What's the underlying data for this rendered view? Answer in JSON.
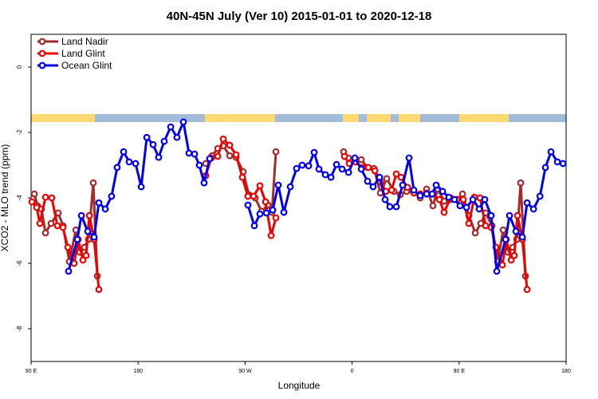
{
  "chart_data": {
    "type": "line",
    "title": "40N-45N July (Ver 10)   2015-01-01 to 2020-12-18",
    "x_label": "Longitude",
    "y_label": "XCO2 - MLO trend (ppm)",
    "xlim": [
      90,
      540
    ],
    "ylim": [
      -9,
      1
    ],
    "xticks": [
      {
        "value": 90,
        "label": "90 E"
      },
      180,
      {
        "value": 270,
        "label": "90 W"
      },
      {
        "value": 360,
        "label": "0"
      },
      {
        "value": 450,
        "label": "90 E"
      },
      {
        "value": 540,
        "label": "180"
      }
    ],
    "yticks": [
      0,
      -2,
      -4,
      -6,
      -8
    ],
    "legend": "top-left",
    "series": [
      {
        "name": "Land Nadir",
        "color": "#a52a2a",
        "x": [
          92.7,
          95.4,
          98.7,
          102.1,
          106.8,
          112.8,
          116.8,
          122.2,
          127.6,
          130.9,
          134.9,
          138.3,
          142.3,
          145.7,
          null,
          236.9,
          242.3,
          247.0,
          251.6,
          257.0,
          262.4,
          268.4,
          273.1,
          278.5,
          283.8,
          289.2,
          292.6,
          295.9,
          null,
          352.9,
          356.9,
          362.3,
          367.7,
          373.0,
          378.4,
          383.8,
          389.1,
          395.2,
          400.5,
          405.9,
          411.3,
          417.3,
          422.7,
          428.0,
          432.1,
          437.4,
          442.8,
          448.2,
          452.9,
          458.2,
          463.6,
          468.3,
          472.3,
          477.7,
          482.4,
          487.1,
          491.1,
          495.1,
          498.5,
          501.8,
          505.8
        ],
        "values": [
          -3.88,
          -4.24,
          -4.34,
          -5.07,
          -4.78,
          -4.46,
          -4.85,
          -5.95,
          -4.98,
          -5.66,
          -5.51,
          -5.27,
          -3.54,
          -6.39,
          null,
          -2.95,
          -2.71,
          -2.49,
          -2.41,
          -2.71,
          -2.76,
          -3.2,
          -3.9,
          -4.0,
          -4.41,
          -4.22,
          -4.44,
          -2.59,
          null,
          -2.59,
          -2.78,
          -2.83,
          -2.83,
          -3.07,
          -3.1,
          -3.85,
          -3.41,
          -3.8,
          -3.9,
          -3.8,
          -3.8,
          -4.0,
          -3.73,
          -4.24,
          -3.73,
          -4.1,
          -4.05,
          -4.05,
          -3.88,
          -4.54,
          -5.07,
          -4.78,
          -4.46,
          -4.85,
          -5.95,
          -4.98,
          -5.66,
          -5.51,
          -5.27,
          -3.54,
          -6.39
        ]
      },
      {
        "name": "Land Glint",
        "color": "#ee0000",
        "x": [
          90.7,
          94.7,
          97.4,
          102.1,
          107.4,
          112.1,
          116.8,
          120.9,
          126.2,
          129.6,
          133.6,
          136.3,
          139.0,
          143.0,
          147.0,
          null,
          236.9,
          241.6,
          247.0,
          251.6,
          257.0,
          262.4,
          267.7,
          272.4,
          277.1,
          282.5,
          287.2,
          291.9,
          295.9,
          null,
          353.6,
          357.6,
          363.0,
          368.3,
          373.7,
          379.1,
          383.8,
          388.5,
          393.2,
          397.2,
          401.2,
          406.6,
          412.0,
          417.3,
          422.7,
          428.0,
          433.4,
          437.4,
          442.8,
          448.2,
          453.5,
          458.2,
          462.9,
          467.6,
          472.3,
          477.0,
          481.0,
          486.4,
          489.7,
          493.8,
          496.4,
          499.1,
          503.2,
          507.2
        ],
        "values": [
          -4.12,
          -4.29,
          -4.78,
          -3.98,
          -4.0,
          -4.85,
          -4.9,
          -5.51,
          -6.0,
          -5.27,
          -5.9,
          -5.76,
          -4.54,
          -5.27,
          -6.8,
          null,
          -3.32,
          -2.78,
          -2.73,
          -2.2,
          -2.39,
          -2.68,
          -3.37,
          -3.95,
          -3.95,
          -3.63,
          -4.12,
          -5.15,
          -4.61,
          null,
          -2.73,
          -2.95,
          -2.9,
          -3.07,
          -3.07,
          -3.17,
          -3.51,
          -3.8,
          -3.76,
          -3.27,
          -3.37,
          -3.68,
          -3.85,
          -3.88,
          -3.85,
          -3.88,
          -4.05,
          -4.44,
          -4.0,
          -4.05,
          -4.05,
          -4.78,
          -3.98,
          -4.0,
          -4.85,
          -4.9,
          -5.51,
          -6.05,
          -5.27,
          -5.9,
          -5.76,
          -4.54,
          -5.27,
          -6.8
        ]
      },
      {
        "name": "Ocean Glint",
        "color": "#0000ee",
        "x": [
          121.5,
          128.9,
          132.3,
          137.6,
          143.0,
          147.0,
          152.4,
          157.7,
          162.4,
          167.8,
          172.5,
          177.9,
          182.6,
          187.3,
          192.6,
          197.3,
          202.0,
          207.4,
          212.7,
          218.1,
          222.8,
          227.5,
          231.5,
          235.5,
          240.2,
          null,
          272.4,
          277.8,
          282.5,
          287.9,
          293.2,
          297.9,
          302.6,
          308.0,
          313.3,
          318.0,
          323.4,
          328.1,
          332.1,
          337.5,
          342.2,
          346.9,
          351.6,
          357.0,
          362.3,
          367.7,
          373.0,
          377.7,
          383.1,
          387.8,
          391.8,
          397.2,
          402.5,
          407.9,
          411.9,
          417.3,
          422.7,
          427.4,
          430.7,
          436.1,
          441.4,
          446.1,
          450.8,
          456.2,
          461.6,
          466.9,
          471.6,
          477.0,
          481.7,
          489.1,
          492.4,
          497.8,
          503.2,
          507.2,
          512.6,
          518.0,
          522.6,
          527.3,
          532.7,
          537.4
        ],
        "values": [
          -6.24,
          -5.27,
          -4.54,
          -5.02,
          -5.2,
          -4.15,
          -4.34,
          -3.95,
          -3.07,
          -2.59,
          -2.9,
          -2.95,
          -3.66,
          -2.15,
          -2.37,
          -2.76,
          -2.27,
          -1.83,
          -2.15,
          -1.68,
          -2.63,
          -2.66,
          -3.0,
          -3.54,
          -2.8,
          null,
          -4.22,
          -4.85,
          -4.49,
          -4.46,
          -4.37,
          -3.61,
          -4.44,
          -3.66,
          -3.1,
          -3.0,
          -3.02,
          -2.61,
          -3.12,
          -3.29,
          -3.37,
          -2.98,
          -3.12,
          -3.22,
          -2.78,
          -3.12,
          -3.49,
          -3.66,
          -3.37,
          -4.05,
          -4.27,
          -4.27,
          -3.61,
          -2.78,
          -3.76,
          -3.93,
          -3.88,
          -3.88,
          -3.61,
          -3.8,
          -3.98,
          -4.05,
          -4.24,
          -4.29,
          -4.05,
          -4.34,
          -4.05,
          -4.54,
          -6.24,
          -5.27,
          -4.54,
          -5.02,
          -5.2,
          -4.15,
          -4.34,
          -3.95,
          -3.07,
          -2.59,
          -2.9,
          -2.95
        ]
      }
    ]
  }
}
